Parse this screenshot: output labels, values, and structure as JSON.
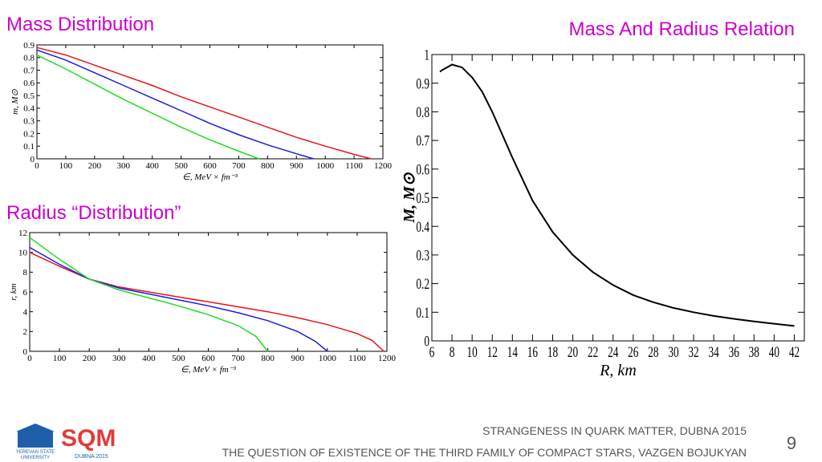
{
  "chart_data": [
    {
      "type": "line",
      "title": "Mass Distribution",
      "x_label": "∈,  MeV × fm⁻³",
      "y_label": "m, M⊙",
      "xlim": [
        0,
        1200
      ],
      "xticks": [
        0,
        100,
        200,
        300,
        400,
        500,
        600,
        700,
        800,
        900,
        1000,
        1100,
        1200
      ],
      "ylim": [
        0,
        0.9
      ],
      "yticks": [
        0,
        0.1,
        0.2,
        0.3,
        0.4,
        0.5,
        0.6,
        0.7,
        0.8,
        0.9
      ],
      "series": [
        {
          "color": "#e8141c",
          "x": [
            0,
            100,
            200,
            300,
            400,
            500,
            600,
            700,
            800,
            900,
            1000,
            1100,
            1160
          ],
          "values": [
            0.88,
            0.82,
            0.74,
            0.66,
            0.58,
            0.49,
            0.41,
            0.33,
            0.25,
            0.17,
            0.1,
            0.035,
            0
          ]
        },
        {
          "color": "#1c1ce0",
          "x": [
            0,
            100,
            200,
            300,
            400,
            500,
            600,
            700,
            800,
            900,
            960
          ],
          "values": [
            0.86,
            0.78,
            0.68,
            0.58,
            0.48,
            0.38,
            0.28,
            0.19,
            0.11,
            0.04,
            0
          ]
        },
        {
          "color": "#22dd22",
          "x": [
            0,
            100,
            200,
            300,
            400,
            500,
            600,
            700,
            770
          ],
          "values": [
            0.82,
            0.71,
            0.59,
            0.47,
            0.36,
            0.25,
            0.15,
            0.06,
            0
          ]
        }
      ]
    },
    {
      "type": "line",
      "title": "Radius “Distribution”",
      "x_label": "∈,  MeV × fm⁻³",
      "y_label": "r, km",
      "xlim": [
        0,
        1200
      ],
      "xticks": [
        0,
        100,
        200,
        300,
        400,
        500,
        600,
        700,
        800,
        900,
        1000,
        1100,
        1200
      ],
      "ylim": [
        0,
        12
      ],
      "yticks": [
        0,
        2,
        4,
        6,
        8,
        10,
        12
      ],
      "series": [
        {
          "color": "#e8141c",
          "x": [
            0,
            100,
            200,
            300,
            400,
            500,
            600,
            700,
            800,
            900,
            1000,
            1100,
            1150,
            1190
          ],
          "values": [
            10,
            8.6,
            7.3,
            6.5,
            6,
            5.5,
            5,
            4.5,
            4,
            3.4,
            2.7,
            1.8,
            1.1,
            0
          ]
        },
        {
          "color": "#1c1ce0",
          "x": [
            0,
            100,
            200,
            300,
            400,
            500,
            600,
            700,
            800,
            900,
            960,
            1000
          ],
          "values": [
            10.5,
            8.8,
            7.3,
            6.4,
            5.8,
            5.2,
            4.6,
            3.9,
            3.1,
            2,
            1,
            0
          ]
        },
        {
          "color": "#22dd22",
          "x": [
            0,
            100,
            200,
            300,
            400,
            500,
            600,
            700,
            760,
            800
          ],
          "values": [
            11.5,
            9.3,
            7.3,
            6.2,
            5.4,
            4.6,
            3.7,
            2.6,
            1.5,
            0
          ]
        }
      ]
    },
    {
      "type": "line",
      "title": "Mass And Radius Relation",
      "x_label": "R, km",
      "y_label": "M, M⊙",
      "xlim": [
        6,
        43
      ],
      "xticks": [
        6,
        8,
        10,
        12,
        14,
        16,
        18,
        20,
        22,
        24,
        26,
        28,
        30,
        32,
        34,
        36,
        38,
        40,
        42
      ],
      "ylim": [
        0,
        1
      ],
      "yticks": [
        0,
        0.1,
        0.2,
        0.3,
        0.4,
        0.5,
        0.6,
        0.7,
        0.8,
        0.9,
        1
      ],
      "series": [
        {
          "color": "#000000",
          "x": [
            6.8,
            7,
            8,
            9,
            10,
            11,
            12,
            13,
            14,
            16,
            18,
            20,
            22,
            24,
            26,
            28,
            30,
            32,
            34,
            36,
            38,
            40,
            42
          ],
          "values": [
            0.94,
            0.945,
            0.965,
            0.955,
            0.92,
            0.87,
            0.8,
            0.72,
            0.64,
            0.49,
            0.38,
            0.3,
            0.24,
            0.195,
            0.16,
            0.135,
            0.115,
            0.1,
            0.087,
            0.077,
            0.068,
            0.06,
            0.052
          ]
        }
      ]
    }
  ],
  "footer": {
    "conference": "STRANGENESS IN QUARK MATTER,  DUBNA 2015",
    "talk": "THE QUESTION OF EXISTENCE OF THE THIRD FAMILY OF COMPACT STARS, VAZGEN BOJUKYAN",
    "page": "9"
  },
  "logos": {
    "university_1": "YEREVAN STATE",
    "university_2": "UNIVERSITY",
    "sqm": "SQM",
    "dubna": "DUBNA 2015"
  }
}
